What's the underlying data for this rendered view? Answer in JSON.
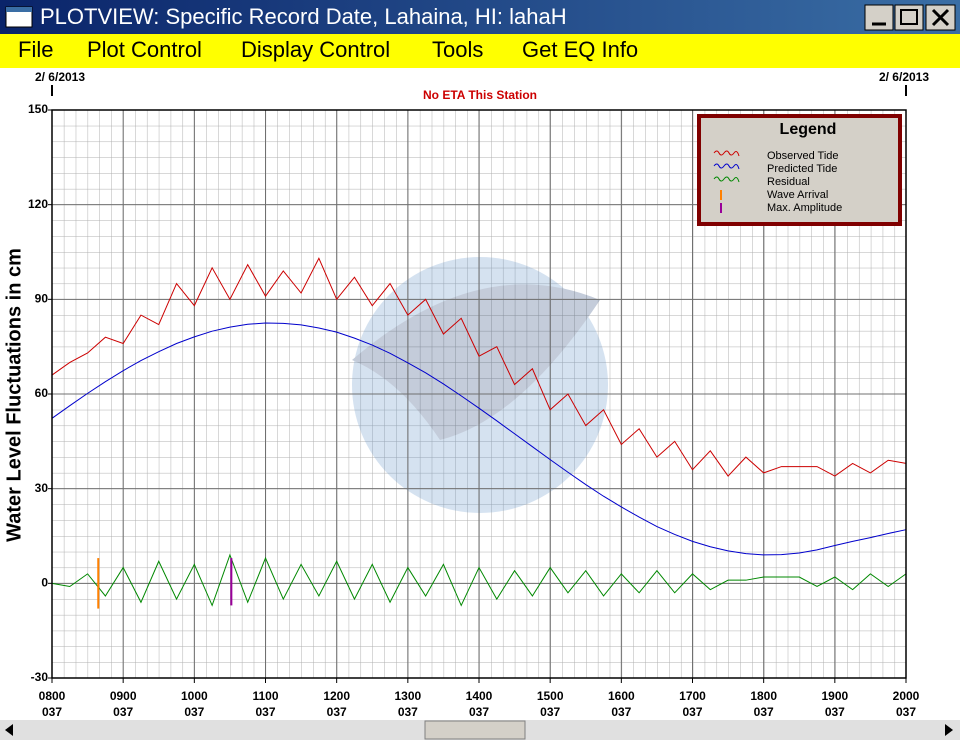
{
  "window": {
    "title": "PLOTVIEW: Specific Record Date, Lahaina, HI: lahaH"
  },
  "menu": [
    "File",
    "Plot Control",
    "Display Control",
    "Tools",
    "Get EQ Info"
  ],
  "chart_data": {
    "type": "line",
    "date_left": "2/ 6/2013",
    "date_right": "2/ 6/2013",
    "annotation": "No ETA This Station",
    "ylabel": "Water Level Fluctuations in cm",
    "xlim": [
      8,
      20
    ],
    "xticks": [
      {
        "value": 8,
        "label": "0800"
      },
      {
        "value": 9,
        "label": "0900"
      },
      {
        "value": 10,
        "label": "1000"
      },
      {
        "value": 11,
        "label": "1100"
      },
      {
        "value": 12,
        "label": "1200"
      },
      {
        "value": 13,
        "label": "1300"
      },
      {
        "value": 14,
        "label": "1400"
      },
      {
        "value": 15,
        "label": "1500"
      },
      {
        "value": 16,
        "label": "1600"
      },
      {
        "value": 17,
        "label": "1700"
      },
      {
        "value": 18,
        "label": "1800"
      },
      {
        "value": 19,
        "label": "1900"
      },
      {
        "value": 20,
        "label": "2000"
      }
    ],
    "xtick_sublabels": [
      "037",
      "037",
      "037",
      "037",
      "037",
      "037",
      "037",
      "037",
      "037",
      "037",
      "037",
      "037",
      "037"
    ],
    "xtick_highlight": {
      "index": 4,
      "color": "#0000c0"
    },
    "ylim": [
      -30,
      150
    ],
    "yticks": [
      -30,
      0,
      30,
      60,
      90,
      120,
      150
    ],
    "grid": true,
    "x": [
      8,
      8.25,
      8.5,
      8.75,
      9,
      9.25,
      9.5,
      9.75,
      10,
      10.25,
      10.5,
      10.75,
      11,
      11.25,
      11.5,
      11.75,
      12,
      12.25,
      12.5,
      12.75,
      13,
      13.25,
      13.5,
      13.75,
      14,
      14.25,
      14.5,
      14.75,
      15,
      15.25,
      15.5,
      15.75,
      16,
      16.25,
      16.5,
      16.75,
      17,
      17.25,
      17.5,
      17.75,
      18,
      18.25,
      18.5,
      18.75,
      19,
      19.25,
      19.5,
      19.75,
      20
    ],
    "series": [
      {
        "name": "Observed Tide",
        "color": "#cc0000",
        "values": [
          66,
          70,
          73,
          78,
          76,
          85,
          82,
          95,
          88,
          100,
          90,
          101,
          91,
          99,
          92,
          103,
          90,
          97,
          88,
          95,
          85,
          90,
          79,
          84,
          72,
          75,
          63,
          68,
          55,
          60,
          50,
          55,
          44,
          49,
          40,
          45,
          36,
          42,
          34,
          40,
          35,
          37,
          37,
          37,
          34,
          38,
          35,
          39,
          38
        ]
      },
      {
        "name": "Predicted Tide",
        "color": "#0000cc",
        "values": [
          52.3,
          56.3,
          60.2,
          63.9,
          67.4,
          70.6,
          73.4,
          76.0,
          78.1,
          79.9,
          81.2,
          82.1,
          82.5,
          82.4,
          81.9,
          80.9,
          79.6,
          77.7,
          75.5,
          72.9,
          69.9,
          66.7,
          63.2,
          59.4,
          55.5,
          51.5,
          47.4,
          43.3,
          39.2,
          35.2,
          31.3,
          27.6,
          24.2,
          21.0,
          18.0,
          15.5,
          13.3,
          11.6,
          10.3,
          9.4,
          9.0,
          9.1,
          9.6,
          10.6,
          12.0,
          13.3,
          14.5,
          15.8,
          17
        ]
      },
      {
        "name": "Residual",
        "color": "#008800",
        "values": [
          0,
          -1,
          3,
          -4,
          5,
          -6,
          7,
          -5,
          6,
          -7,
          9,
          -6,
          8,
          -5,
          6,
          -4,
          7,
          -5,
          6,
          -6,
          5,
          -4,
          6,
          -7,
          5,
          -5,
          4,
          -4,
          5,
          -3,
          4,
          -4,
          3,
          -3,
          4,
          -3,
          3,
          -2,
          1,
          1,
          2,
          2,
          2,
          -1,
          2,
          -2,
          3,
          -1,
          3
        ]
      }
    ],
    "markers": [
      {
        "name": "Wave Arrival",
        "color": "#ff8000",
        "x": 8.65,
        "values": [
          -8,
          8
        ]
      },
      {
        "name": "Max. Amplitude",
        "color": "#990099",
        "x": 10.52,
        "values": [
          -7,
          8
        ]
      }
    ],
    "legend": {
      "title": "Legend",
      "position": "upper right"
    }
  }
}
